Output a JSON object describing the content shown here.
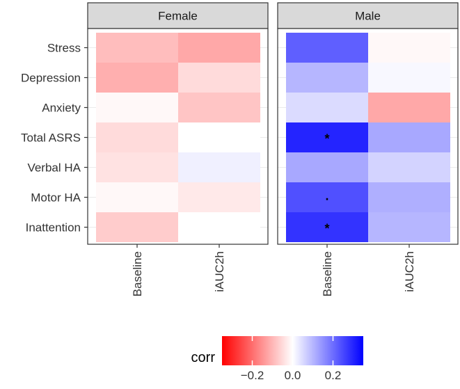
{
  "chart_data": {
    "type": "heatmap",
    "rows": [
      "Stress",
      "Depression",
      "Anxiety",
      "Total ASRS",
      "Verbal HA",
      "Motor HA",
      "Inattention"
    ],
    "columns": [
      "Baseline",
      "iAUC2h"
    ],
    "panels": [
      {
        "name": "Female",
        "values": [
          [
            -0.09,
            -0.12
          ],
          [
            -0.11,
            -0.05
          ],
          [
            -0.01,
            -0.08
          ],
          [
            -0.05,
            0.0
          ],
          [
            -0.04,
            0.02
          ],
          [
            -0.01,
            -0.03
          ],
          [
            -0.07,
            0.0
          ]
        ],
        "significance": [
          [
            "",
            ""
          ],
          [
            "",
            ""
          ],
          [
            "",
            ""
          ],
          [
            "",
            ""
          ],
          [
            "",
            ""
          ],
          [
            "",
            ""
          ],
          [
            "",
            ""
          ]
        ]
      },
      {
        "name": "Male",
        "values": [
          [
            0.22,
            -0.01
          ],
          [
            0.1,
            0.01
          ],
          [
            0.05,
            -0.12
          ],
          [
            0.3,
            0.12
          ],
          [
            0.12,
            0.06
          ],
          [
            0.24,
            0.11
          ],
          [
            0.28,
            0.1
          ]
        ],
        "significance": [
          [
            "",
            ""
          ],
          [
            "",
            ""
          ],
          [
            "",
            ""
          ],
          [
            "*",
            ""
          ],
          [
            "",
            ""
          ],
          [
            ".",
            ""
          ],
          [
            "*",
            ""
          ]
        ]
      }
    ],
    "legend": {
      "title": "corr",
      "range": [
        -0.35,
        0.35
      ],
      "ticks": [
        -0.2,
        0.0,
        0.2
      ],
      "tick_labels": [
        "−0.2",
        "0.0",
        "0.2"
      ],
      "low_color": "#FF0000",
      "mid_color": "#FFFFFF",
      "high_color": "#0000FF",
      "position": "bottom"
    },
    "xlabel": "",
    "ylabel": ""
  }
}
